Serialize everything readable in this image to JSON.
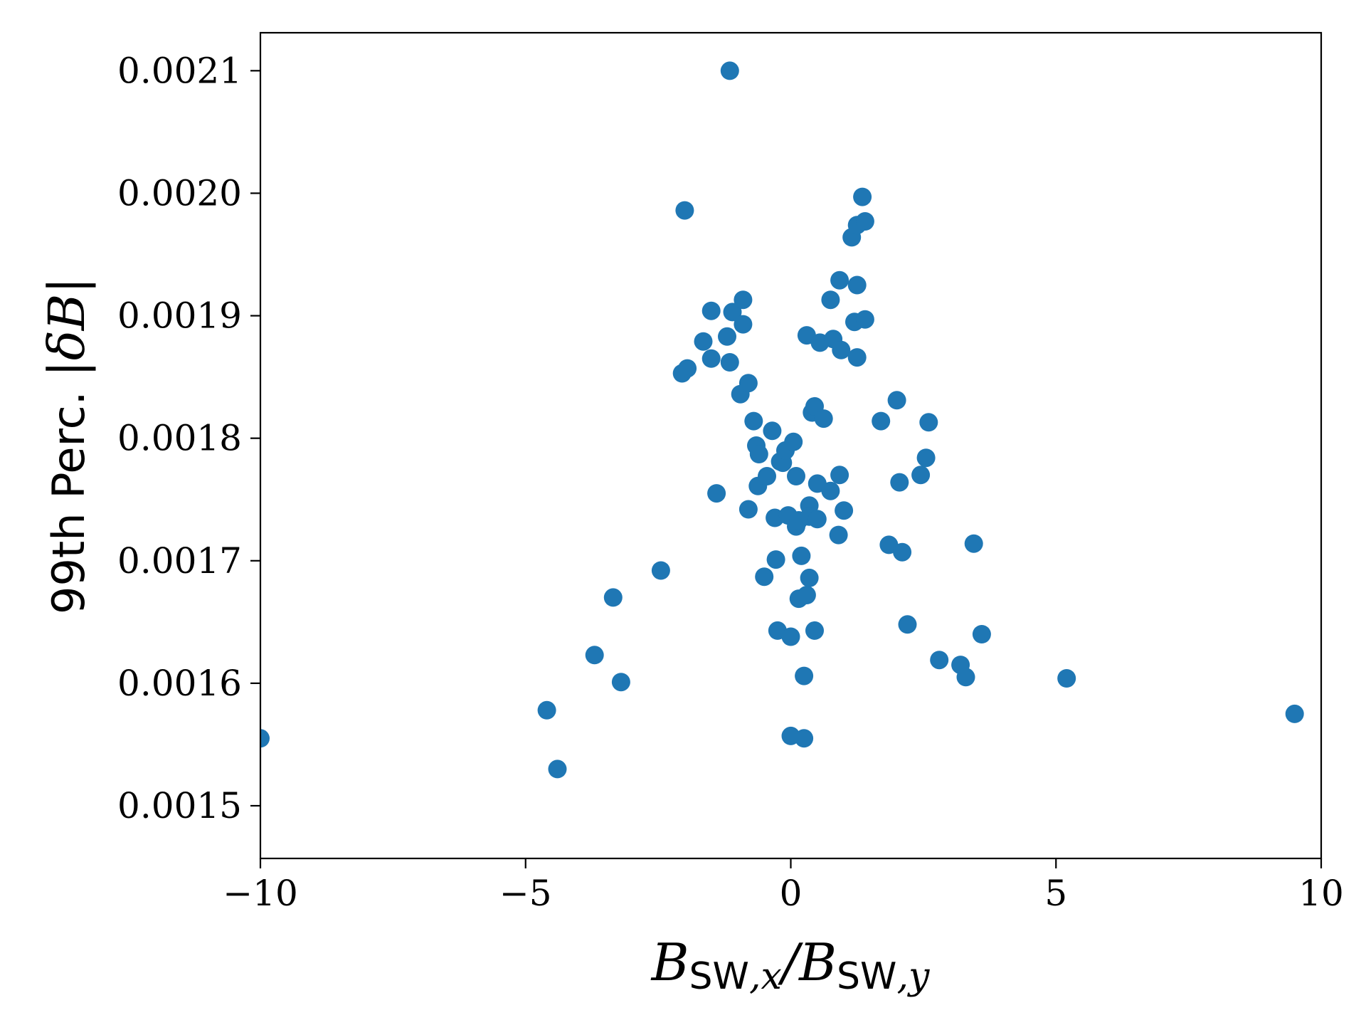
{
  "chart_data": {
    "type": "scatter",
    "xlabel": {
      "parts": [
        {
          "text": "B",
          "style": "math"
        },
        {
          "text": "SW",
          "style": "sub-sans"
        },
        {
          "text": ",x",
          "style": "sub-math"
        },
        {
          "text": "/",
          "style": "math"
        },
        {
          "text": "B",
          "style": "math"
        },
        {
          "text": "SW",
          "style": "sub-sans"
        },
        {
          "text": ",y",
          "style": "sub-math"
        }
      ]
    },
    "ylabel": {
      "prefix": "99th Perc. ",
      "math": "|δB|"
    },
    "xlim": [
      -10,
      10
    ],
    "ylim": [
      0.001457,
      0.002131
    ],
    "xticks": [
      -10,
      -5,
      0,
      5,
      10
    ],
    "xtick_labels": [
      "−10",
      "−5",
      "0",
      "5",
      "10"
    ],
    "yticks": [
      0.0015,
      0.0016,
      0.0017,
      0.0018,
      0.0019,
      0.002,
      0.0021
    ],
    "ytick_labels": [
      "0.0015",
      "0.0016",
      "0.0017",
      "0.0018",
      "0.0019",
      "0.0020",
      "0.0021"
    ],
    "grid": false,
    "marker_color": "#1f77b4",
    "series": [
      {
        "points": [
          [
            -10.0,
            0.001555
          ],
          [
            -4.6,
            0.001578
          ],
          [
            -4.4,
            0.00153
          ],
          [
            -3.7,
            0.001623
          ],
          [
            -3.2,
            0.001601
          ],
          [
            -3.35,
            0.00167
          ],
          [
            -2.45,
            0.001692
          ],
          [
            -2.05,
            0.001853
          ],
          [
            -1.95,
            0.001857
          ],
          [
            -2.0,
            0.001986
          ],
          [
            -1.65,
            0.001879
          ],
          [
            -1.5,
            0.001904
          ],
          [
            -1.5,
            0.001865
          ],
          [
            -1.4,
            0.001755
          ],
          [
            -1.2,
            0.001883
          ],
          [
            -1.15,
            0.001862
          ],
          [
            -1.15,
            0.0021
          ],
          [
            -1.1,
            0.001903
          ],
          [
            -0.95,
            0.001836
          ],
          [
            -0.9,
            0.001893
          ],
          [
            -0.9,
            0.001913
          ],
          [
            -0.8,
            0.001845
          ],
          [
            -0.8,
            0.001742
          ],
          [
            -0.7,
            0.001814
          ],
          [
            -0.65,
            0.001794
          ],
          [
            -0.6,
            0.001787
          ],
          [
            -0.62,
            0.001761
          ],
          [
            -0.5,
            0.001687
          ],
          [
            -0.45,
            0.001769
          ],
          [
            -0.35,
            0.001806
          ],
          [
            -0.3,
            0.001735
          ],
          [
            -0.28,
            0.001701
          ],
          [
            -0.25,
            0.001643
          ],
          [
            -0.2,
            0.001781
          ],
          [
            -0.15,
            0.00178
          ],
          [
            -0.1,
            0.00179
          ],
          [
            -0.05,
            0.001737
          ],
          [
            0.0,
            0.001638
          ],
          [
            0.0,
            0.001557
          ],
          [
            0.05,
            0.001797
          ],
          [
            0.1,
            0.001769
          ],
          [
            0.1,
            0.001728
          ],
          [
            0.15,
            0.001669
          ],
          [
            0.2,
            0.001704
          ],
          [
            0.15,
            0.001733
          ],
          [
            0.25,
            0.001606
          ],
          [
            0.25,
            0.001555
          ],
          [
            0.3,
            0.001884
          ],
          [
            0.3,
            0.001672
          ],
          [
            0.35,
            0.001745
          ],
          [
            0.35,
            0.001686
          ],
          [
            0.35,
            0.001736
          ],
          [
            0.4,
            0.001821
          ],
          [
            0.45,
            0.001826
          ],
          [
            0.45,
            0.001643
          ],
          [
            0.5,
            0.001763
          ],
          [
            0.5,
            0.001734
          ],
          [
            0.55,
            0.001878
          ],
          [
            0.62,
            0.001816
          ],
          [
            0.75,
            0.001913
          ],
          [
            0.75,
            0.001757
          ],
          [
            0.8,
            0.001881
          ],
          [
            0.9,
            0.001721
          ],
          [
            0.92,
            0.00177
          ],
          [
            0.92,
            0.001929
          ],
          [
            0.95,
            0.001872
          ],
          [
            1.0,
            0.001741
          ],
          [
            1.15,
            0.001964
          ],
          [
            1.2,
            0.001895
          ],
          [
            1.25,
            0.001974
          ],
          [
            1.25,
            0.001866
          ],
          [
            1.25,
            0.001925
          ],
          [
            1.35,
            0.001997
          ],
          [
            1.4,
            0.001897
          ],
          [
            1.4,
            0.001977
          ],
          [
            1.7,
            0.001814
          ],
          [
            1.85,
            0.001713
          ],
          [
            2.0,
            0.001831
          ],
          [
            2.05,
            0.001764
          ],
          [
            2.1,
            0.001707
          ],
          [
            2.2,
            0.001648
          ],
          [
            2.45,
            0.00177
          ],
          [
            2.55,
            0.001784
          ],
          [
            2.6,
            0.001813
          ],
          [
            2.8,
            0.001619
          ],
          [
            3.2,
            0.001615
          ],
          [
            3.3,
            0.001605
          ],
          [
            3.45,
            0.001714
          ],
          [
            3.6,
            0.00164
          ],
          [
            5.2,
            0.001604
          ],
          [
            9.5,
            0.001575
          ]
        ]
      }
    ]
  }
}
